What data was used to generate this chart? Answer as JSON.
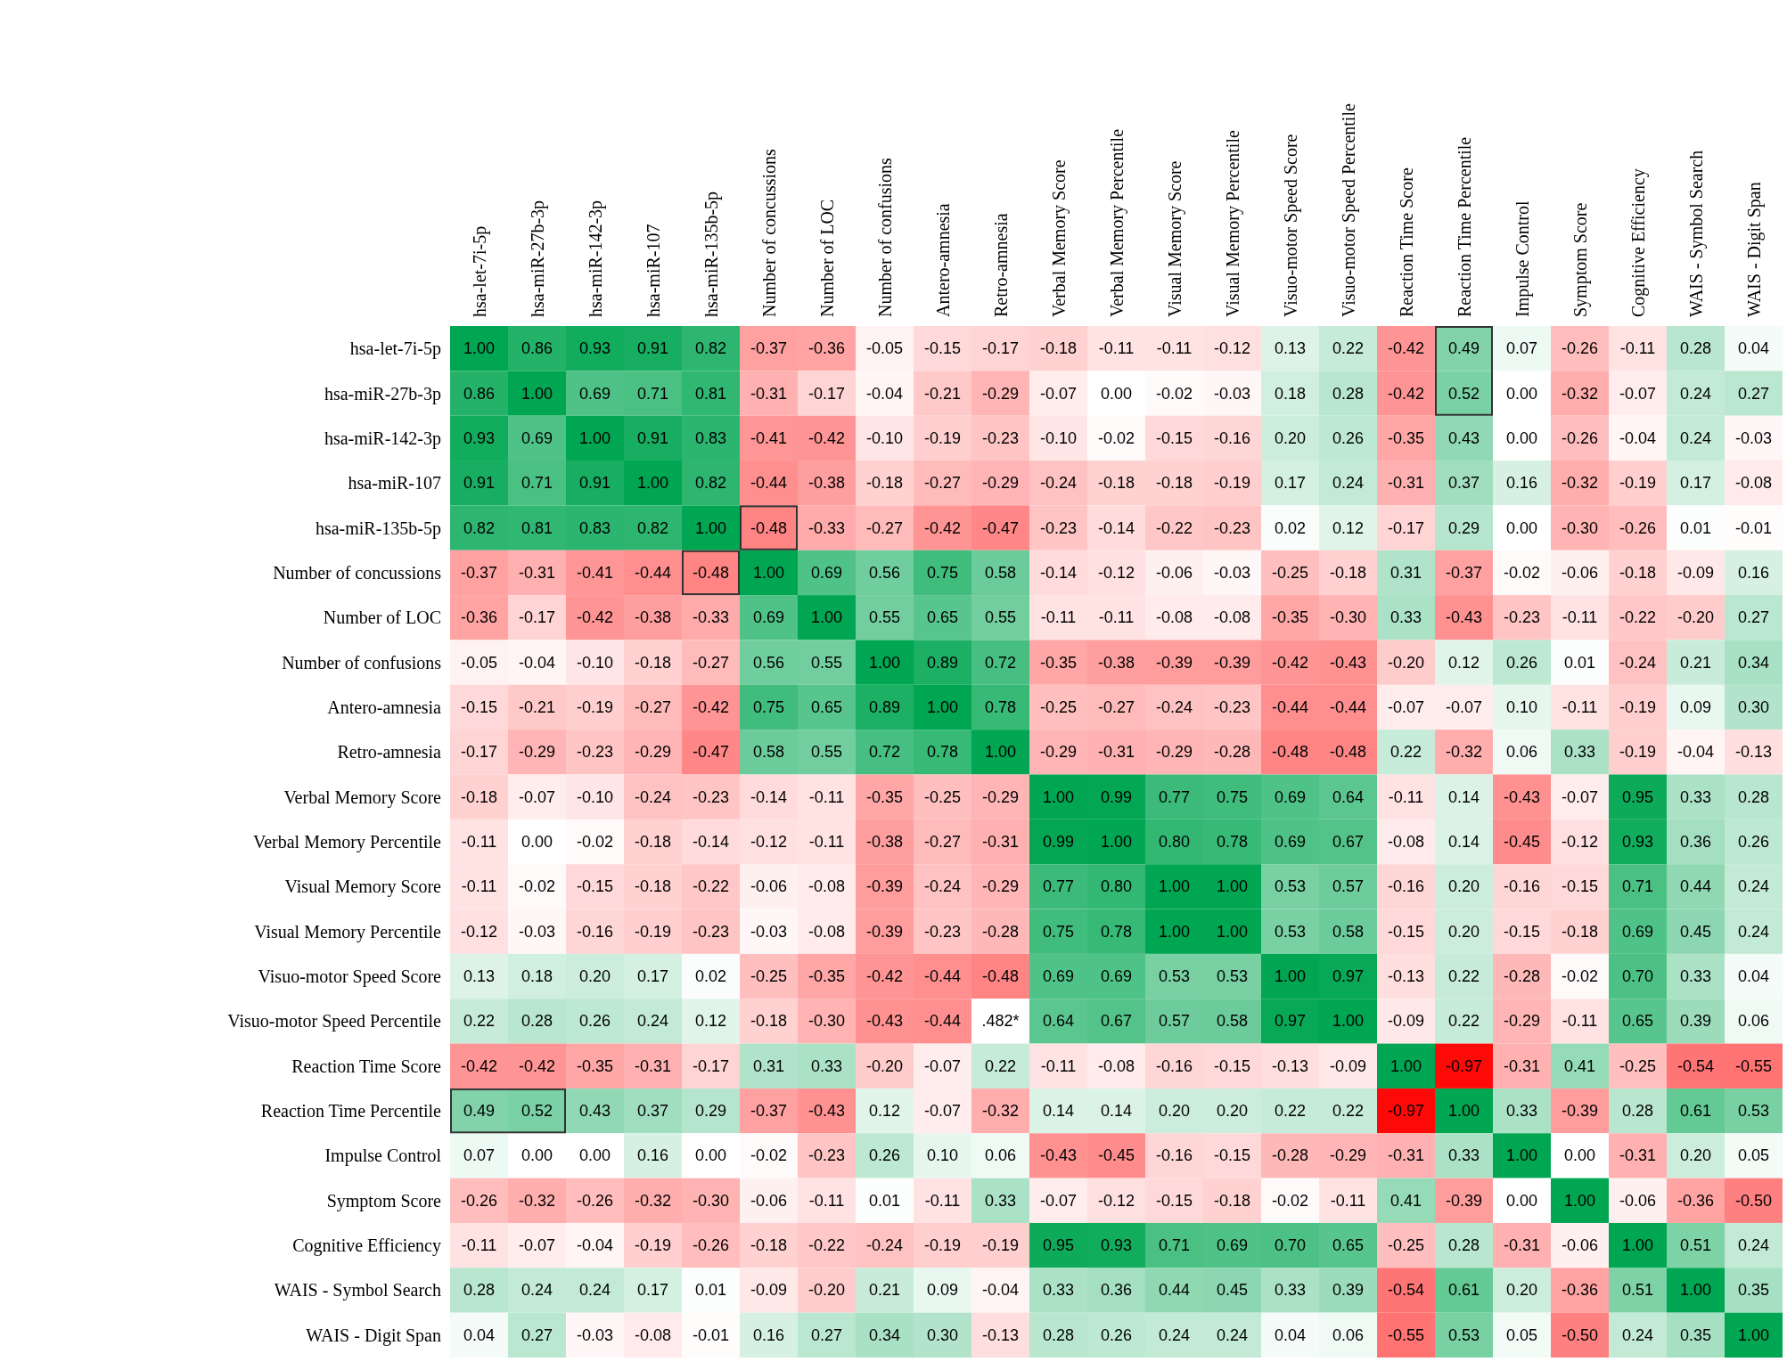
{
  "chart_data": {
    "type": "heatmap",
    "cell_labels": [
      [
        "1.00",
        "0.86",
        "0.93",
        "0.91",
        "0.82",
        "-0.37",
        "-0.36",
        "-0.05",
        "-0.15",
        "-0.17",
        "-0.18",
        "-0.11",
        "-0.11",
        "-0.12",
        "0.13",
        "0.22",
        "-0.42",
        "0.49",
        "0.07",
        "-0.26",
        "-0.11",
        "0.28",
        "0.04"
      ],
      [
        "0.86",
        "1.00",
        "0.69",
        "0.71",
        "0.81",
        "-0.31",
        "-0.17",
        "-0.04",
        "-0.21",
        "-0.29",
        "-0.07",
        "0.00",
        "-0.02",
        "-0.03",
        "0.18",
        "0.28",
        "-0.42",
        "0.52",
        "0.00",
        "-0.32",
        "-0.07",
        "0.24",
        "0.27"
      ],
      [
        "0.93",
        "0.69",
        "1.00",
        "0.91",
        "0.83",
        "-0.41",
        "-0.42",
        "-0.10",
        "-0.19",
        "-0.23",
        "-0.10",
        "-0.02",
        "-0.15",
        "-0.16",
        "0.20",
        "0.26",
        "-0.35",
        "0.43",
        "0.00",
        "-0.26",
        "-0.04",
        "0.24",
        "-0.03"
      ],
      [
        "0.91",
        "0.71",
        "0.91",
        "1.00",
        "0.82",
        "-0.44",
        "-0.38",
        "-0.18",
        "-0.27",
        "-0.29",
        "-0.24",
        "-0.18",
        "-0.18",
        "-0.19",
        "0.17",
        "0.24",
        "-0.31",
        "0.37",
        "0.16",
        "-0.32",
        "-0.19",
        "0.17",
        "-0.08"
      ],
      [
        "0.82",
        "0.81",
        "0.83",
        "0.82",
        "1.00",
        "-0.48",
        "-0.33",
        "-0.27",
        "-0.42",
        "-0.47",
        "-0.23",
        "-0.14",
        "-0.22",
        "-0.23",
        "0.02",
        "0.12",
        "-0.17",
        "0.29",
        "0.00",
        "-0.30",
        "-0.26",
        "0.01",
        "-0.01"
      ],
      [
        "-0.37",
        "-0.31",
        "-0.41",
        "-0.44",
        "-0.48",
        "1.00",
        "0.69",
        "0.56",
        "0.75",
        "0.58",
        "-0.14",
        "-0.12",
        "-0.06",
        "-0.03",
        "-0.25",
        "-0.18",
        "0.31",
        "-0.37",
        "-0.02",
        "-0.06",
        "-0.18",
        "-0.09",
        "0.16"
      ],
      [
        "-0.36",
        "-0.17",
        "-0.42",
        "-0.38",
        "-0.33",
        "0.69",
        "1.00",
        "0.55",
        "0.65",
        "0.55",
        "-0.11",
        "-0.11",
        "-0.08",
        "-0.08",
        "-0.35",
        "-0.30",
        "0.33",
        "-0.43",
        "-0.23",
        "-0.11",
        "-0.22",
        "-0.20",
        "0.27"
      ],
      [
        "-0.05",
        "-0.04",
        "-0.10",
        "-0.18",
        "-0.27",
        "0.56",
        "0.55",
        "1.00",
        "0.89",
        "0.72",
        "-0.35",
        "-0.38",
        "-0.39",
        "-0.39",
        "-0.42",
        "-0.43",
        "-0.20",
        "0.12",
        "0.26",
        "0.01",
        "-0.24",
        "0.21",
        "0.34"
      ],
      [
        "-0.15",
        "-0.21",
        "-0.19",
        "-0.27",
        "-0.42",
        "0.75",
        "0.65",
        "0.89",
        "1.00",
        "0.78",
        "-0.25",
        "-0.27",
        "-0.24",
        "-0.23",
        "-0.44",
        "-0.44",
        "-0.07",
        "-0.07",
        "0.10",
        "-0.11",
        "-0.19",
        "0.09",
        "0.30"
      ],
      [
        "-0.17",
        "-0.29",
        "-0.23",
        "-0.29",
        "-0.47",
        "0.58",
        "0.55",
        "0.72",
        "0.78",
        "1.00",
        "-0.29",
        "-0.31",
        "-0.29",
        "-0.28",
        "-0.48",
        "-0.48",
        "0.22",
        "-0.32",
        "0.06",
        "0.33",
        "-0.19",
        "-0.04",
        "-0.13"
      ],
      [
        "-0.18",
        "-0.07",
        "-0.10",
        "-0.24",
        "-0.23",
        "-0.14",
        "-0.11",
        "-0.35",
        "-0.25",
        "-0.29",
        "1.00",
        "0.99",
        "0.77",
        "0.75",
        "0.69",
        "0.64",
        "-0.11",
        "0.14",
        "-0.43",
        "-0.07",
        "0.95",
        "0.33",
        "0.28"
      ],
      [
        "-0.11",
        "0.00",
        "-0.02",
        "-0.18",
        "-0.14",
        "-0.12",
        "-0.11",
        "-0.38",
        "-0.27",
        "-0.31",
        "0.99",
        "1.00",
        "0.80",
        "0.78",
        "0.69",
        "0.67",
        "-0.08",
        "0.14",
        "-0.45",
        "-0.12",
        "0.93",
        "0.36",
        "0.26"
      ],
      [
        "-0.11",
        "-0.02",
        "-0.15",
        "-0.18",
        "-0.22",
        "-0.06",
        "-0.08",
        "-0.39",
        "-0.24",
        "-0.29",
        "0.77",
        "0.80",
        "1.00",
        "1.00",
        "0.53",
        "0.57",
        "-0.16",
        "0.20",
        "-0.16",
        "-0.15",
        "0.71",
        "0.44",
        "0.24"
      ],
      [
        "-0.12",
        "-0.03",
        "-0.16",
        "-0.19",
        "-0.23",
        "-0.03",
        "-0.08",
        "-0.39",
        "-0.23",
        "-0.28",
        "0.75",
        "0.78",
        "1.00",
        "1.00",
        "0.53",
        "0.58",
        "-0.15",
        "0.20",
        "-0.15",
        "-0.18",
        "0.69",
        "0.45",
        "0.24"
      ],
      [
        "0.13",
        "0.18",
        "0.20",
        "0.17",
        "0.02",
        "-0.25",
        "-0.35",
        "-0.42",
        "-0.44",
        "-0.48",
        "0.69",
        "0.69",
        "0.53",
        "0.53",
        "1.00",
        "0.97",
        "-0.13",
        "0.22",
        "-0.28",
        "-0.02",
        "0.70",
        "0.33",
        "0.04"
      ],
      [
        "0.22",
        "0.28",
        "0.26",
        "0.24",
        "0.12",
        "-0.18",
        "-0.30",
        "-0.43",
        "-0.44",
        ".482*",
        "0.64",
        "0.67",
        "0.57",
        "0.58",
        "0.97",
        "1.00",
        "-0.09",
        "0.22",
        "-0.29",
        "-0.11",
        "0.65",
        "0.39",
        "0.06"
      ],
      [
        "-0.42",
        "-0.42",
        "-0.35",
        "-0.31",
        "-0.17",
        "0.31",
        "0.33",
        "-0.20",
        "-0.07",
        "0.22",
        "-0.11",
        "-0.08",
        "-0.16",
        "-0.15",
        "-0.13",
        "-0.09",
        "1.00",
        "-0.97",
        "-0.31",
        "0.41",
        "-0.25",
        "-0.54",
        "-0.55"
      ],
      [
        "0.49",
        "0.52",
        "0.43",
        "0.37",
        "0.29",
        "-0.37",
        "-0.43",
        "0.12",
        "-0.07",
        "-0.32",
        "0.14",
        "0.14",
        "0.20",
        "0.20",
        "0.22",
        "0.22",
        "-0.97",
        "1.00",
        "0.33",
        "-0.39",
        "0.28",
        "0.61",
        "0.53"
      ],
      [
        "0.07",
        "0.00",
        "0.00",
        "0.16",
        "0.00",
        "-0.02",
        "-0.23",
        "0.26",
        "0.10",
        "0.06",
        "-0.43",
        "-0.45",
        "-0.16",
        "-0.15",
        "-0.28",
        "-0.29",
        "-0.31",
        "0.33",
        "1.00",
        "0.00",
        "-0.31",
        "0.20",
        "0.05"
      ],
      [
        "-0.26",
        "-0.32",
        "-0.26",
        "-0.32",
        "-0.30",
        "-0.06",
        "-0.11",
        "0.01",
        "-0.11",
        "0.33",
        "-0.07",
        "-0.12",
        "-0.15",
        "-0.18",
        "-0.02",
        "-0.11",
        "0.41",
        "-0.39",
        "0.00",
        "1.00",
        "-0.06",
        "-0.36",
        "-0.50"
      ],
      [
        "-0.11",
        "-0.07",
        "-0.04",
        "-0.19",
        "-0.26",
        "-0.18",
        "-0.22",
        "-0.24",
        "-0.19",
        "-0.19",
        "0.95",
        "0.93",
        "0.71",
        "0.69",
        "0.70",
        "0.65",
        "-0.25",
        "0.28",
        "-0.31",
        "-0.06",
        "1.00",
        "0.51",
        "0.24"
      ],
      [
        "0.28",
        "0.24",
        "0.24",
        "0.17",
        "0.01",
        "-0.09",
        "-0.20",
        "0.21",
        "0.09",
        "-0.04",
        "0.33",
        "0.36",
        "0.44",
        "0.45",
        "0.33",
        "0.39",
        "-0.54",
        "0.61",
        "0.20",
        "-0.36",
        "0.51",
        "1.00",
        "0.35"
      ],
      [
        "0.04",
        "0.27",
        "-0.03",
        "-0.08",
        "-0.01",
        "0.16",
        "0.27",
        "0.34",
        "0.30",
        "-0.13",
        "0.28",
        "0.26",
        "0.24",
        "0.24",
        "0.04",
        "0.06",
        "-0.55",
        "0.53",
        "0.05",
        "-0.50",
        "0.24",
        "0.35",
        "1.00"
      ]
    ],
    "categories": [
      "hsa-let-7i-5p",
      "hsa-miR-27b-3p",
      "hsa-miR-142-3p",
      "hsa-miR-107",
      "hsa-miR-135b-5p",
      "Number of concussions",
      "Number of LOC",
      "Number of confusions",
      "Antero-amnesia",
      "Retro-amnesia",
      "Verbal Memory Score",
      "Verbal Memory Percentile",
      "Visual Memory Score",
      "Visual Memory Percentile",
      "Visuo-motor Speed Score",
      "Visuo-motor Speed Percentile",
      "Reaction Time Score",
      "Reaction Time Percentile",
      "Impulse Control",
      "Symptom Score",
      "Cognitive Efficiency",
      "WAIS - Symbol Search",
      "WAIS - Digit Span"
    ],
    "y_categories": [
      "hsa-let-7i-5p",
      "hsa-miR-27b-3p",
      "hsa-miR-142-3p",
      "hsa-miR-107",
      "hsa-miR-135b-5p",
      "Number of concussions",
      "Number of LOC",
      "Number of confusions",
      "Antero-amnesia",
      "Retro-amnesia",
      "Verbal Memory Score",
      "Verbal Memory Percentile",
      "Visual Memory Score",
      "Visual Memory Percentile",
      "Visuo-motor Speed Score",
      "Visuo-motor Speed Percentile",
      "Reaction Time Score",
      "Reaction Time Percentile",
      "Impulse Control",
      "Symptom Score",
      "Cognitive Efficiency",
      "WAIS - Symbol Search",
      "WAIS - Digit Span"
    ],
    "cells": [
      [
        1.0,
        0.86,
        0.93,
        0.91,
        0.82,
        -0.37,
        -0.36,
        -0.05,
        -0.15,
        -0.17,
        -0.18,
        -0.11,
        -0.11,
        -0.12,
        0.13,
        0.22,
        -0.42,
        0.49,
        0.07,
        -0.26,
        -0.11,
        0.28,
        0.04
      ],
      [
        0.86,
        1.0,
        0.69,
        0.71,
        0.81,
        -0.31,
        -0.17,
        -0.04,
        -0.21,
        -0.29,
        -0.07,
        0.0,
        -0.02,
        -0.03,
        0.18,
        0.28,
        -0.42,
        0.52,
        0.0,
        -0.32,
        -0.07,
        0.24,
        0.27
      ],
      [
        0.93,
        0.69,
        1.0,
        0.91,
        0.83,
        -0.41,
        -0.42,
        -0.1,
        -0.19,
        -0.23,
        -0.1,
        -0.02,
        -0.15,
        -0.16,
        0.2,
        0.26,
        -0.35,
        0.43,
        0.0,
        -0.26,
        -0.04,
        0.24,
        -0.03
      ],
      [
        0.91,
        0.71,
        0.91,
        1.0,
        0.82,
        -0.44,
        -0.38,
        -0.18,
        -0.27,
        -0.29,
        -0.24,
        -0.18,
        -0.18,
        -0.19,
        0.17,
        0.24,
        -0.31,
        0.37,
        0.16,
        -0.32,
        -0.19,
        0.17,
        -0.08
      ],
      [
        0.82,
        0.81,
        0.83,
        0.82,
        1.0,
        -0.48,
        -0.33,
        -0.27,
        -0.42,
        -0.47,
        -0.23,
        -0.14,
        -0.22,
        -0.23,
        0.02,
        0.12,
        -0.17,
        0.29,
        0.0,
        -0.3,
        -0.26,
        0.01,
        -0.01
      ],
      [
        -0.37,
        -0.31,
        -0.41,
        -0.44,
        -0.48,
        1.0,
        0.69,
        0.56,
        0.75,
        0.58,
        -0.14,
        -0.12,
        -0.06,
        -0.03,
        -0.25,
        -0.18,
        0.31,
        -0.37,
        -0.02,
        -0.06,
        -0.18,
        -0.09,
        0.16
      ],
      [
        -0.36,
        -0.17,
        -0.42,
        -0.38,
        -0.33,
        0.69,
        1.0,
        0.55,
        0.65,
        0.55,
        -0.11,
        -0.11,
        -0.08,
        -0.08,
        -0.35,
        -0.3,
        0.33,
        -0.43,
        -0.23,
        -0.11,
        -0.22,
        -0.2,
        0.27
      ],
      [
        -0.05,
        -0.04,
        -0.1,
        -0.18,
        -0.27,
        0.56,
        0.55,
        1.0,
        0.89,
        0.72,
        -0.35,
        -0.38,
        -0.39,
        -0.39,
        -0.42,
        -0.43,
        -0.2,
        0.12,
        0.26,
        0.01,
        -0.24,
        0.21,
        0.34
      ],
      [
        -0.15,
        -0.21,
        -0.19,
        -0.27,
        -0.42,
        0.75,
        0.65,
        0.89,
        1.0,
        0.78,
        -0.25,
        -0.27,
        -0.24,
        -0.23,
        -0.44,
        -0.44,
        -0.07,
        -0.07,
        0.1,
        -0.11,
        -0.19,
        0.09,
        0.3
      ],
      [
        -0.17,
        -0.29,
        -0.23,
        -0.29,
        -0.47,
        0.58,
        0.55,
        0.72,
        0.78,
        1.0,
        -0.29,
        -0.31,
        -0.29,
        -0.28,
        -0.48,
        -0.48,
        0.22,
        -0.32,
        0.06,
        0.33,
        -0.19,
        -0.04,
        -0.13
      ],
      [
        -0.18,
        -0.07,
        -0.1,
        -0.24,
        -0.23,
        -0.14,
        -0.11,
        -0.35,
        -0.25,
        -0.29,
        1.0,
        0.99,
        0.77,
        0.75,
        0.69,
        0.64,
        -0.11,
        0.14,
        -0.43,
        -0.07,
        0.95,
        0.33,
        0.28
      ],
      [
        -0.11,
        0.0,
        -0.02,
        -0.18,
        -0.14,
        -0.12,
        -0.11,
        -0.38,
        -0.27,
        -0.31,
        0.99,
        1.0,
        0.8,
        0.78,
        0.69,
        0.67,
        -0.08,
        0.14,
        -0.45,
        -0.12,
        0.93,
        0.36,
        0.26
      ],
      [
        -0.11,
        -0.02,
        -0.15,
        -0.18,
        -0.22,
        -0.06,
        -0.08,
        -0.39,
        -0.24,
        -0.29,
        0.77,
        0.8,
        1.0,
        1.0,
        0.53,
        0.57,
        -0.16,
        0.2,
        -0.16,
        -0.15,
        0.71,
        0.44,
        0.24
      ],
      [
        -0.12,
        -0.03,
        -0.16,
        -0.19,
        -0.23,
        -0.03,
        -0.08,
        -0.39,
        -0.23,
        -0.28,
        0.75,
        0.78,
        1.0,
        1.0,
        0.53,
        0.58,
        -0.15,
        0.2,
        -0.15,
        -0.18,
        0.69,
        0.45,
        0.24
      ],
      [
        0.13,
        0.18,
        0.2,
        0.17,
        0.02,
        -0.25,
        -0.35,
        -0.42,
        -0.44,
        -0.48,
        0.69,
        0.69,
        0.53,
        0.53,
        1.0,
        0.97,
        -0.13,
        0.22,
        -0.28,
        -0.02,
        0.7,
        0.33,
        0.04
      ],
      [
        0.22,
        0.28,
        0.26,
        0.24,
        0.12,
        -0.18,
        -0.3,
        -0.43,
        -0.44,
        null,
        0.64,
        0.67,
        0.57,
        0.58,
        0.97,
        1.0,
        -0.09,
        0.22,
        -0.29,
        -0.11,
        0.65,
        0.39,
        0.06
      ],
      [
        -0.42,
        -0.42,
        -0.35,
        -0.31,
        -0.17,
        0.31,
        0.33,
        -0.2,
        -0.07,
        0.22,
        -0.11,
        -0.08,
        -0.16,
        -0.15,
        -0.13,
        -0.09,
        1.0,
        -0.97,
        -0.31,
        0.41,
        -0.25,
        -0.54,
        -0.55
      ],
      [
        0.49,
        0.52,
        0.43,
        0.37,
        0.29,
        -0.37,
        -0.43,
        0.12,
        -0.07,
        -0.32,
        0.14,
        0.14,
        0.2,
        0.2,
        0.22,
        0.22,
        -0.97,
        1.0,
        0.33,
        -0.39,
        0.28,
        0.61,
        0.53
      ],
      [
        0.07,
        0.0,
        0.0,
        0.16,
        0.0,
        -0.02,
        -0.23,
        0.26,
        0.1,
        0.06,
        -0.43,
        -0.45,
        -0.16,
        -0.15,
        -0.28,
        -0.29,
        -0.31,
        0.33,
        1.0,
        0.0,
        -0.31,
        0.2,
        0.05
      ],
      [
        -0.26,
        -0.32,
        -0.26,
        -0.32,
        -0.3,
        -0.06,
        -0.11,
        0.01,
        -0.11,
        0.33,
        -0.07,
        -0.12,
        -0.15,
        -0.18,
        -0.02,
        -0.11,
        0.41,
        -0.39,
        0.0,
        1.0,
        -0.06,
        -0.36,
        -0.5
      ],
      [
        -0.11,
        -0.07,
        -0.04,
        -0.19,
        -0.26,
        -0.18,
        -0.22,
        -0.24,
        -0.19,
        -0.19,
        0.95,
        0.93,
        0.71,
        0.69,
        0.7,
        0.65,
        -0.25,
        0.28,
        -0.31,
        -0.06,
        1.0,
        0.51,
        0.24
      ],
      [
        0.28,
        0.24,
        0.24,
        0.17,
        0.01,
        -0.09,
        -0.2,
        0.21,
        0.09,
        -0.04,
        0.33,
        0.36,
        0.44,
        0.45,
        0.33,
        0.39,
        -0.54,
        0.61,
        0.2,
        -0.36,
        0.51,
        1.0,
        0.35
      ],
      [
        0.04,
        0.27,
        -0.03,
        -0.08,
        -0.01,
        0.16,
        0.27,
        0.34,
        0.3,
        -0.13,
        0.28,
        0.26,
        0.24,
        0.24,
        0.04,
        0.06,
        -0.55,
        0.53,
        0.05,
        -0.5,
        0.24,
        0.35,
        1.0
      ]
    ]
  }
}
